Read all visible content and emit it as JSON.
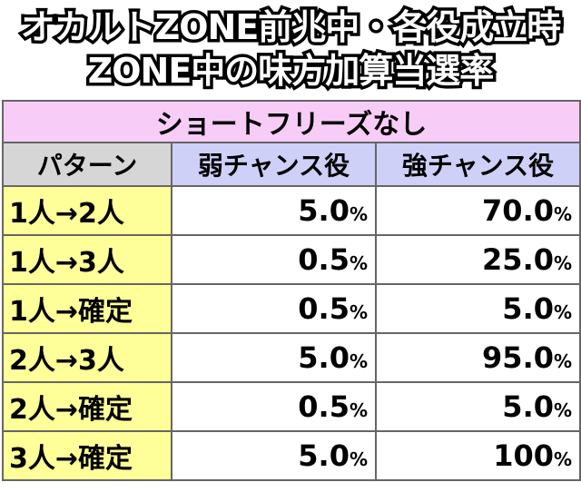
{
  "title": {
    "line1": "オカルトZONE前兆中・各役成立時",
    "line2": "ZONE中の味方加算当選率"
  },
  "table": {
    "subtitle": "ショートフリーズなし",
    "headers": {
      "pattern": "パターン",
      "weak": "弱チャンス役",
      "strong": "強チャンス役"
    },
    "rows": [
      {
        "pattern": "1人→2人",
        "weak": "5.0",
        "strong": "70.0"
      },
      {
        "pattern": "1人→3人",
        "weak": "0.5",
        "strong": "25.0"
      },
      {
        "pattern": "1人→確定",
        "weak": "0.5",
        "strong": "5.0"
      },
      {
        "pattern": "2人→3人",
        "weak": "5.0",
        "strong": "95.0"
      },
      {
        "pattern": "2人→確定",
        "weak": "0.5",
        "strong": "5.0"
      },
      {
        "pattern": "3人→確定",
        "weak": "5.0",
        "strong": "100"
      }
    ],
    "unit": "%"
  }
}
